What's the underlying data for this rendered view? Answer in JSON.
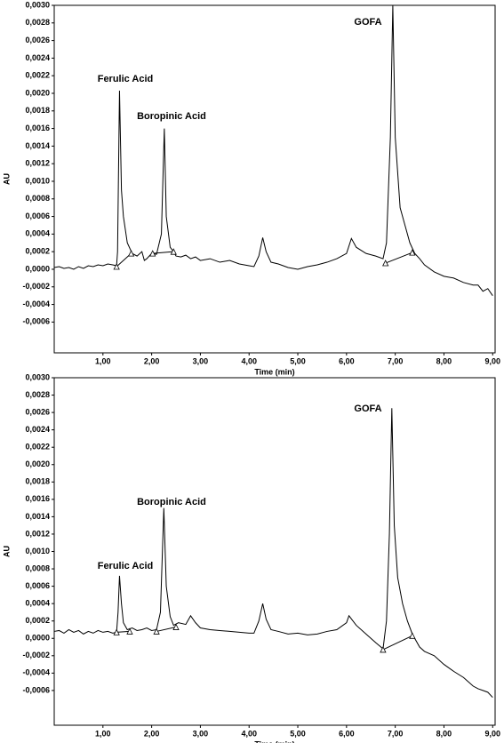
{
  "chart_data": [
    {
      "type": "line",
      "xlabel": "Time (min)",
      "ylabel": "AU",
      "color": "#000000",
      "annotations": [
        "Ferulic Acid",
        "Boropinic Acid",
        "GOFA"
      ],
      "x": [
        0,
        0.1,
        0.2,
        0.3,
        0.4,
        0.5,
        0.6,
        0.7,
        0.8,
        0.9,
        1.0,
        1.1,
        1.2,
        1.28,
        1.3,
        1.34,
        1.38,
        1.42,
        1.5,
        1.6,
        1.7,
        1.8,
        1.85,
        1.9,
        2.0,
        2.1,
        2.2,
        2.26,
        2.3,
        2.38,
        2.45,
        2.5,
        2.6,
        2.7,
        2.8,
        2.9,
        3.0,
        3.2,
        3.4,
        3.6,
        3.8,
        4.0,
        4.1,
        4.2,
        4.28,
        4.35,
        4.45,
        4.6,
        4.8,
        5.0,
        5.2,
        5.4,
        5.6,
        5.8,
        6.0,
        6.1,
        6.2,
        6.4,
        6.6,
        6.75,
        6.82,
        6.9,
        6.95,
        7.0,
        7.1,
        7.2,
        7.3,
        7.4,
        7.5,
        7.6,
        7.8,
        8.0,
        8.2,
        8.4,
        8.6,
        8.7,
        8.8,
        8.9,
        9.0
      ],
      "values": [
        2e-05,
        3e-05,
        1e-05,
        2e-05,
        0,
        3e-05,
        1e-05,
        4e-05,
        3e-05,
        5e-05,
        4e-05,
        6e-05,
        5e-05,
        4e-05,
        0.0002,
        0.00203,
        0.0009,
        0.0006,
        0.0003,
        0.00018,
        0.00015,
        0.0002,
        0.0001,
        0.00012,
        0.00018,
        0.00017,
        0.0004,
        0.0016,
        0.0006,
        0.00025,
        0.0002,
        0.00015,
        0.00014,
        0.00016,
        0.00012,
        0.00014,
        0.0001,
        0.00012,
        8e-05,
        0.0001,
        6e-05,
        4e-05,
        3e-05,
        0.00015,
        0.00036,
        0.0002,
        8e-05,
        6e-05,
        2e-05,
        0,
        3e-05,
        5e-05,
        8e-05,
        0.00012,
        0.00018,
        0.00035,
        0.00025,
        0.00018,
        0.00015,
        0.00012,
        0.0003,
        0.0015,
        0.003,
        0.0015,
        0.0007,
        0.0005,
        0.0003,
        0.00018,
        0.00012,
        5e-05,
        -3e-05,
        -8e-05,
        -0.0001,
        -0.00015,
        -0.00018,
        -0.00018,
        -0.00025,
        -0.00022,
        -0.0003
      ],
      "integration_marks": {
        "x": [
          1.28,
          1.58,
          2.02,
          2.45,
          6.8,
          7.35
        ],
        "y": [
          3e-05,
          0.00018,
          0.00018,
          0.0002,
          7e-05,
          0.00019
        ]
      },
      "xlim": [
        0,
        9.05
      ],
      "ylim": [
        -0.00095,
        0.003
      ],
      "xticks": [
        {
          "value": 1,
          "label": "1,00"
        },
        {
          "value": 2,
          "label": "2,00"
        },
        {
          "value": 3,
          "label": "3,00"
        },
        {
          "value": 4,
          "label": "4,00"
        },
        {
          "value": 5,
          "label": "5,00"
        },
        {
          "value": 6,
          "label": "6,00"
        },
        {
          "value": 7,
          "label": "7,00"
        },
        {
          "value": 8,
          "label": "8,00"
        },
        {
          "value": 9,
          "label": "9,00"
        }
      ],
      "yticks": [
        {
          "value": 0.003,
          "label": "0,0030"
        },
        {
          "value": 0.0028,
          "label": "0,0028"
        },
        {
          "value": 0.0026,
          "label": "0,0026"
        },
        {
          "value": 0.0024,
          "label": "0,0024"
        },
        {
          "value": 0.0022,
          "label": "0,0022"
        },
        {
          "value": 0.002,
          "label": "0,0020"
        },
        {
          "value": 0.0018,
          "label": "0,0018"
        },
        {
          "value": 0.0016,
          "label": "0,0016"
        },
        {
          "value": 0.0014,
          "label": "0,0014"
        },
        {
          "value": 0.0012,
          "label": "0,0012"
        },
        {
          "value": 0.001,
          "label": "0,0010"
        },
        {
          "value": 0.0008,
          "label": "0,0008"
        },
        {
          "value": 0.0006,
          "label": "0,0006"
        },
        {
          "value": 0.0004,
          "label": "0,0004"
        },
        {
          "value": 0.0002,
          "label": "0,0002"
        },
        {
          "value": 0,
          "label": "0,0000"
        },
        {
          "value": -0.0002,
          "label": "-0,0002"
        },
        {
          "value": -0.0004,
          "label": "-0,0004"
        },
        {
          "value": -0.0006,
          "label": "-0,0006"
        }
      ]
    },
    {
      "type": "line",
      "xlabel": "Time (min)",
      "ylabel": "AU",
      "color": "#000000",
      "annotations": [
        "Ferulic Acid",
        "Boropinic Acid",
        "GOFA"
      ],
      "x": [
        0,
        0.1,
        0.2,
        0.3,
        0.4,
        0.5,
        0.6,
        0.7,
        0.8,
        0.9,
        1.0,
        1.1,
        1.2,
        1.28,
        1.31,
        1.34,
        1.38,
        1.42,
        1.5,
        1.6,
        1.7,
        1.8,
        1.9,
        2.0,
        2.1,
        2.18,
        2.25,
        2.3,
        2.38,
        2.45,
        2.55,
        2.7,
        2.8,
        2.9,
        3.0,
        3.2,
        3.4,
        3.6,
        3.8,
        4.0,
        4.1,
        4.2,
        4.28,
        4.35,
        4.45,
        4.6,
        4.8,
        5.0,
        5.2,
        5.4,
        5.6,
        5.8,
        6.0,
        6.05,
        6.2,
        6.4,
        6.6,
        6.75,
        6.82,
        6.88,
        6.93,
        6.98,
        7.05,
        7.15,
        7.25,
        7.35,
        7.5,
        7.6,
        7.8,
        8.0,
        8.2,
        8.4,
        8.6,
        8.7,
        8.8,
        8.9,
        9.0
      ],
      "values": [
        8e-05,
        9e-05,
        6e-05,
        0.0001,
        7e-05,
        9e-05,
        5e-05,
        8e-05,
        6e-05,
        9e-05,
        7e-05,
        8e-05,
        6e-05,
        7e-05,
        0.0003,
        0.00072,
        0.0004,
        0.00018,
        0.0001,
        0.00012,
        9e-05,
        0.0001,
        0.00012,
        9e-05,
        0.0001,
        0.0003,
        0.0015,
        0.0006,
        0.00025,
        0.00015,
        0.00018,
        0.00016,
        0.00026,
        0.00018,
        0.00012,
        0.0001,
        9e-05,
        8e-05,
        7e-05,
        6e-05,
        6e-05,
        0.0002,
        0.0004,
        0.00022,
        0.0001,
        8e-05,
        5e-05,
        6e-05,
        4e-05,
        5e-05,
        8e-05,
        0.0001,
        0.00018,
        0.00026,
        0.00015,
        5e-05,
        -5e-05,
        -0.00012,
        0.0002,
        0.0012,
        0.00265,
        0.0013,
        0.0007,
        0.0004,
        0.0002,
        5e-05,
        -0.0001,
        -0.00015,
        -0.0002,
        -0.0003,
        -0.00038,
        -0.00045,
        -0.00055,
        -0.00058,
        -0.0006,
        -0.00062,
        -0.00068
      ],
      "integration_marks": {
        "x": [
          1.28,
          1.55,
          2.1,
          2.5,
          6.75,
          7.35
        ],
        "y": [
          7e-05,
          8e-05,
          8e-05,
          0.00013,
          -0.00013,
          3e-05
        ]
      },
      "xlim": [
        0,
        9.05
      ],
      "ylim": [
        -0.001,
        0.003
      ],
      "xticks": [
        {
          "value": 1,
          "label": "1,00"
        },
        {
          "value": 2,
          "label": "2,00"
        },
        {
          "value": 3,
          "label": "3,00"
        },
        {
          "value": 4,
          "label": "4,00"
        },
        {
          "value": 5,
          "label": "5,00"
        },
        {
          "value": 6,
          "label": "6,00"
        },
        {
          "value": 7,
          "label": "7,00"
        },
        {
          "value": 8,
          "label": "8,00"
        },
        {
          "value": 9,
          "label": "9,00"
        }
      ],
      "yticks": [
        {
          "value": 0.003,
          "label": "0,0030"
        },
        {
          "value": 0.0028,
          "label": "0,0028"
        },
        {
          "value": 0.0026,
          "label": "0,0026"
        },
        {
          "value": 0.0024,
          "label": "0,0024"
        },
        {
          "value": 0.0022,
          "label": "0,0022"
        },
        {
          "value": 0.002,
          "label": "0,0020"
        },
        {
          "value": 0.0018,
          "label": "0,0018"
        },
        {
          "value": 0.0016,
          "label": "0,0016"
        },
        {
          "value": 0.0014,
          "label": "0,0014"
        },
        {
          "value": 0.0012,
          "label": "0,0012"
        },
        {
          "value": 0.001,
          "label": "0,0010"
        },
        {
          "value": 0.0008,
          "label": "0,0008"
        },
        {
          "value": 0.0006,
          "label": "0,0006"
        },
        {
          "value": 0.0004,
          "label": "0,0004"
        },
        {
          "value": 0.0002,
          "label": "0,0002"
        },
        {
          "value": 0,
          "label": "0,0000"
        },
        {
          "value": -0.0002,
          "label": "-0,0002"
        },
        {
          "value": -0.0004,
          "label": "-0,0004"
        },
        {
          "value": -0.0006,
          "label": "-0,0006"
        }
      ]
    }
  ]
}
